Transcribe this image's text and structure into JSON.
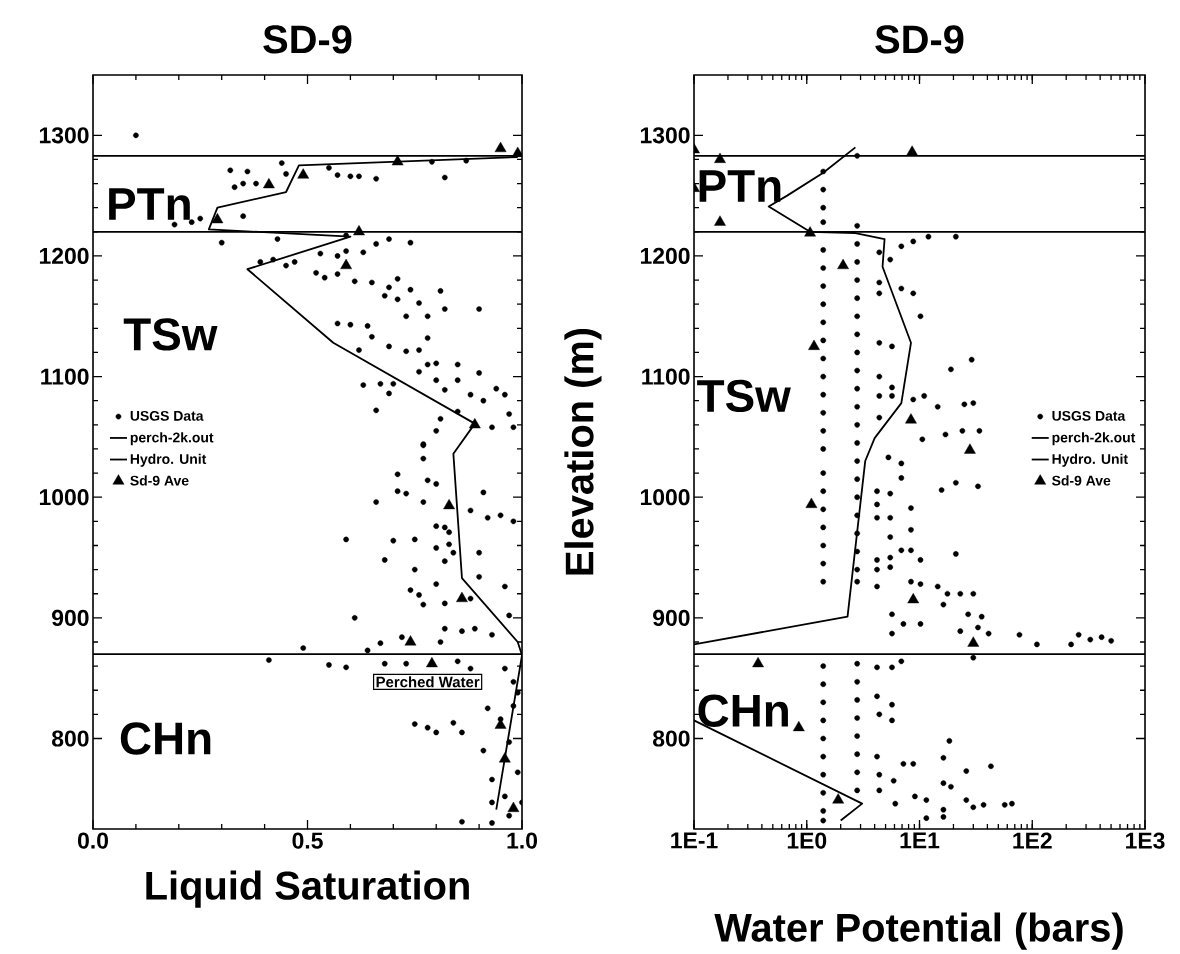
{
  "chart_data": [
    {
      "type": "scatter",
      "title": "SD-9",
      "xlabel": "Liquid Saturation",
      "xlim": [
        0,
        1
      ],
      "ylim": [
        725,
        1350
      ],
      "xticks": [
        {
          "value": 0,
          "label": "0.0"
        },
        0.5,
        {
          "value": 1,
          "label": "1.0"
        }
      ],
      "yticks": [
        800,
        900,
        1000,
        1100,
        1200,
        1300
      ],
      "legend": "left",
      "annotations": [
        "PTn",
        "TSw",
        "CHn",
        "Perched Water"
      ],
      "ref_lines": [
        {
          "axis": "y",
          "value": 1283,
          "label": "Hydro. Unit",
          "color": "#000000"
        },
        {
          "axis": "y",
          "value": 1220,
          "color": "#000000"
        },
        {
          "axis": "y",
          "value": 870,
          "color": "#000000"
        }
      ],
      "series": [
        {
          "name": "USGS Data",
          "marker": "circle",
          "color": "#000000",
          "x": [
            0.1,
            0.32,
            0.36,
            0.44,
            0.45,
            0.57,
            0.6,
            0.62,
            0.66,
            0.82,
            0.33,
            0.35,
            0.38,
            0.35,
            0.19,
            0.23,
            0.25,
            0.79,
            0.87,
            0.55,
            0.3,
            0.43,
            0.59,
            0.66,
            0.69,
            0.74,
            0.39,
            0.42,
            0.45,
            0.47,
            0.53,
            0.57,
            0.59,
            0.63,
            0.52,
            0.54,
            0.57,
            0.61,
            0.65,
            0.68,
            0.69,
            0.71,
            0.74,
            0.76,
            0.81,
            0.82,
            0.9,
            0.71,
            0.73,
            0.78,
            0.57,
            0.6,
            0.64,
            0.65,
            0.69,
            0.73,
            0.76,
            0.78,
            0.62,
            0.78,
            0.8,
            0.85,
            0.9,
            0.76,
            0.8,
            0.82,
            0.85,
            0.94,
            0.63,
            0.67,
            0.7,
            0.69,
            0.66,
            0.88,
            0.91,
            0.96,
            0.97,
            0.81,
            0.8,
            0.77,
            0.85,
            0.93,
            0.98,
            0.77,
            0.77,
            0.71,
            0.78,
            0.8,
            0.71,
            0.73,
            0.66,
            0.77,
            0.91,
            0.88,
            0.92,
            0.95,
            0.98,
            0.8,
            0.82,
            0.83,
            0.59,
            0.7,
            0.75,
            0.8,
            0.83,
            0.68,
            0.75,
            0.82,
            0.84,
            0.9,
            0.9,
            0.96,
            0.74,
            0.76,
            0.8,
            0.77,
            0.82,
            0.88,
            0.61,
            0.82,
            0.86,
            0.89,
            0.93,
            0.97,
            0.81,
            0.72,
            0.67,
            0.64,
            0.49,
            0.41,
            0.55,
            0.59,
            0.68,
            0.73,
            0.85,
            0.88,
            0.96,
            0.98,
            0.99,
            0.92,
            0.95,
            0.98,
            0.75,
            0.78,
            0.8,
            0.84,
            0.86,
            0.91,
            0.97,
            0.93,
            0.99,
            0.93,
            0.96,
            1.0,
            0.86,
            0.93,
            0.97
          ],
          "values": [
            1300,
            1271,
            1270,
            1277,
            1268,
            1267,
            1266,
            1266,
            1264,
            1265,
            1257,
            1260,
            1260,
            1233,
            1226,
            1228,
            1231,
            1278,
            1279,
            1273,
            1211,
            1214,
            1217,
            1210,
            1214,
            1211,
            1195,
            1197,
            1192,
            1195,
            1202,
            1200,
            1204,
            1203,
            1186,
            1182,
            1185,
            1179,
            1178,
            1167,
            1174,
            1181,
            1172,
            1161,
            1171,
            1156,
            1156,
            1164,
            1150,
            1150,
            1144,
            1143,
            1142,
            1133,
            1125,
            1121,
            1122,
            1132,
            1122,
            1110,
            1111,
            1110,
            1103,
            1104,
            1097,
            1089,
            1097,
            1090,
            1093,
            1094,
            1094,
            1086,
            1072,
            1085,
            1080,
            1085,
            1069,
            1065,
            1055,
            1044,
            1071,
            1058,
            1058,
            1043,
            1032,
            1019,
            1014,
            1011,
            1005,
            1003,
            996,
            996,
            1004,
            989,
            983,
            985,
            980,
            976,
            975,
            971,
            965,
            964,
            965,
            958,
            961,
            948,
            940,
            947,
            954,
            954,
            934,
            926,
            923,
            919,
            928,
            911,
            912,
            916,
            900,
            891,
            889,
            891,
            886,
            902,
            880,
            884,
            879,
            873,
            875,
            865,
            861,
            859,
            862,
            862,
            864,
            858,
            858,
            847,
            838,
            825,
            816,
            827,
            812,
            809,
            805,
            813,
            805,
            790,
            797,
            766,
            772,
            747,
            752,
            747,
            731,
            730,
            736
          ]
        },
        {
          "name": "perch-2k.out",
          "type": "line",
          "marker": "none",
          "color": "#000000",
          "x": [
            0.99,
            0.48,
            0.45,
            0.29,
            0.27,
            0.6,
            0.36,
            0.56,
            0.89,
            0.84,
            0.86,
            0.99,
            1.0,
            0.94
          ],
          "values": [
            1282,
            1275,
            1253,
            1240,
            1222,
            1216,
            1189,
            1128,
            1061,
            1036,
            933,
            880,
            869,
            741
          ]
        },
        {
          "name": "Sd-9 Ave",
          "marker": "triangle",
          "color": "#000000",
          "x": [
            0.95,
            0.99,
            0.71,
            0.49,
            0.41,
            0.29,
            0.62,
            0.59,
            0.89,
            0.86,
            0.83,
            0.74,
            0.79,
            0.95,
            0.96,
            0.98
          ],
          "values": [
            1289,
            1285,
            1278,
            1267,
            1259,
            1230,
            1220,
            1192,
            1060,
            916,
            993,
            880,
            862,
            811,
            783,
            742
          ]
        }
      ]
    },
    {
      "type": "scatter",
      "title": "SD-9",
      "xlabel": "Water Potential (bars)",
      "ylabel": "Elevation (m)",
      "log": "x",
      "xlim": [
        0.1,
        1000
      ],
      "ylim": [
        725,
        1350
      ],
      "xticks": [
        {
          "value": 0.1,
          "label": "1E-1"
        },
        {
          "value": 1,
          "label": "1E0"
        },
        {
          "value": 10,
          "label": "1E1"
        },
        {
          "value": 100,
          "label": "1E2"
        },
        {
          "value": 1000,
          "label": "1E3"
        }
      ],
      "yticks": [
        800,
        900,
        1000,
        1100,
        1200,
        1300
      ],
      "legend": "right",
      "annotations": [
        "PTn",
        "TSw",
        "CHn"
      ],
      "ref_lines": [
        {
          "axis": "y",
          "value": 1283,
          "label": "Hydro. Unit",
          "color": "#000000"
        },
        {
          "axis": "y",
          "value": 1220,
          "color": "#000000"
        },
        {
          "axis": "y",
          "value": 870,
          "color": "#000000"
        }
      ],
      "series": [
        {
          "name": "USGS Data",
          "marker": "circle",
          "color": "#000000",
          "x": [
            1.4,
            1.4,
            1.4,
            1.4,
            1.4,
            1.4,
            1.4,
            1.4,
            1.4,
            1.4,
            1.4,
            1.4,
            1.4,
            1.4,
            1.4,
            1.4,
            1.4,
            1.4,
            1.4,
            1.4,
            1.4,
            1.4,
            1.4,
            1.4,
            1.4,
            1.4,
            1.4,
            1.4,
            1.4,
            1.4,
            1.4,
            1.4,
            1.4,
            2.8,
            2.8,
            2.8,
            2.8,
            2.8,
            2.8,
            2.8,
            2.8,
            2.8,
            2.8,
            2.8,
            2.8,
            2.8,
            2.8,
            2.8,
            2.8,
            2.8,
            2.8,
            2.8,
            2.8,
            2.8,
            2.8,
            2.8,
            2.8,
            2.8,
            2.8,
            2.8,
            2.8,
            2.8,
            2.8,
            6.9,
            8.8,
            12,
            21,
            4.4,
            5.5,
            4.4,
            4.4,
            6.9,
            8.8,
            10.2,
            4.4,
            5.7,
            4.4,
            5.7,
            5.7,
            4.4,
            19,
            29,
            8.8,
            11,
            14.5,
            25,
            30,
            4.4,
            10.6,
            17,
            24,
            34,
            5.3,
            6.9,
            6.9,
            4.2,
            5.5,
            4.2,
            4.2,
            5.5,
            5.5,
            8.4,
            8.4,
            15.7,
            21,
            33,
            21,
            6.9,
            8.4,
            10.2,
            5.5,
            4.2,
            4.2,
            5.5,
            4.2,
            8.4,
            10.2,
            5.7,
            7.2,
            10.2,
            5.7,
            14.5,
            17.7,
            16.3,
            23,
            27,
            30,
            35.6,
            23,
            33,
            41,
            77,
            110,
            221,
            258,
            327,
            412,
            501,
            30,
            4.2,
            5.7,
            6.9,
            4.2,
            5.7,
            4.4,
            5.7,
            4.2,
            4.4,
            4.4,
            5.9,
            7.2,
            8.8,
            6.1,
            9.1,
            11.5,
            11.5,
            16.3,
            18.4,
            16.3,
            19,
            16.3,
            16.3,
            26,
            43,
            26,
            30,
            37,
            57,
            66
          ],
          "values": [
            1270,
            1255,
            1240,
            1228,
            1205,
            1190,
            1175,
            1160,
            1145,
            1130,
            1115,
            1100,
            1085,
            1070,
            1055,
            1040,
            1020,
            1005,
            990,
            975,
            960,
            945,
            930,
            860,
            845,
            830,
            815,
            800,
            785,
            770,
            755,
            740,
            732,
            1283,
            1225,
            1210,
            1195,
            1180,
            1165,
            1150,
            1135,
            1120,
            1105,
            1090,
            1075,
            1060,
            1045,
            1030,
            1015,
            1000,
            985,
            970,
            955,
            940,
            930,
            862,
            847,
            832,
            817,
            802,
            787,
            772,
            757,
            1208,
            1212,
            1216,
            1216,
            1203,
            1197,
            1178,
            1169,
            1173,
            1169,
            1150,
            1128,
            1125,
            1100,
            1091,
            1084,
            1084,
            1106,
            1114,
            1081,
            1084,
            1075,
            1077,
            1078,
            1066,
            1048,
            1052,
            1055,
            1055,
            1033,
            1028,
            1016,
            1005,
            1003,
            994,
            983,
            983,
            967,
            991,
            973,
            1006,
            1012,
            1009,
            953,
            956,
            956,
            948,
            950,
            948,
            940,
            942,
            926,
            930,
            928,
            903,
            895,
            895,
            887,
            926,
            920,
            911,
            920,
            903,
            920,
            901,
            889,
            892,
            887,
            886,
            878,
            878,
            886,
            882,
            884,
            881,
            867,
            859,
            859,
            864,
            835,
            828,
            820,
            815,
            785,
            770,
            757,
            765,
            779,
            779,
            746,
            752,
            749,
            734,
            784,
            798,
            763,
            760,
            741,
            735,
            773,
            777,
            749,
            743,
            745,
            745,
            746
          ]
        },
        {
          "name": "perch-2k.out",
          "type": "line",
          "marker": "none",
          "color": "#000000",
          "x": [
            2.7,
            1.4,
            0.67,
            0.46,
            1.07,
            2.7,
            4.9,
            4.7,
            8.4,
            6.9,
            4.0,
            3.3,
            2.3,
            0.1,
            null,
            0.1,
            3.1,
            2.0
          ],
          "values": [
            1290,
            1269,
            1250,
            1241,
            1220,
            1219,
            1214,
            1191,
            1128,
            1078,
            1049,
            1030,
            901,
            878,
            null,
            815,
            746,
            732
          ]
        },
        {
          "name": "Sd-9 Ave",
          "marker": "triangle",
          "color": "#000000",
          "x": [
            0.1,
            0.17,
            0.1,
            0.17,
            1.07,
            8.6,
            2.1,
            1.16,
            8.4,
            28,
            1.1,
            8.8,
            30,
            0.37,
            0.85,
            1.9
          ],
          "values": [
            1288,
            1280,
            1256,
            1228,
            1219,
            1286,
            1192,
            1125,
            1064,
            1039,
            994,
            915,
            879,
            862,
            809,
            749
          ]
        }
      ]
    }
  ]
}
